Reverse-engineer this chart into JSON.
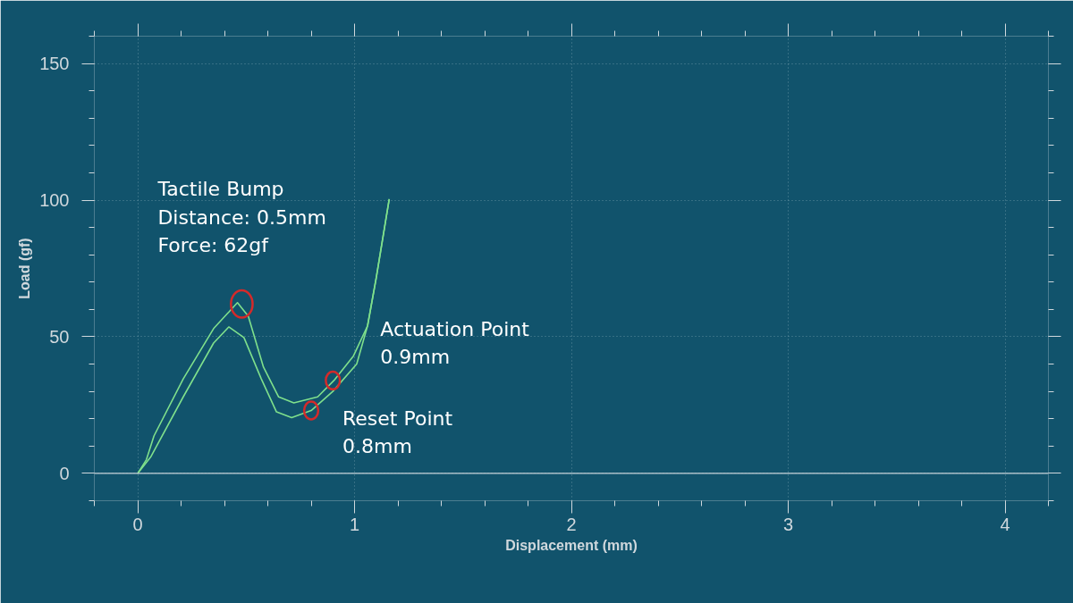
{
  "chart_data": {
    "type": "line",
    "xlabel": "Displacement (mm)",
    "ylabel": "Load (gf)",
    "xlim": [
      -0.2,
      4.2
    ],
    "ylim": [
      -10,
      160
    ],
    "xticks": [
      0,
      1,
      2,
      3,
      4
    ],
    "yticks": [
      0,
      50,
      100,
      150
    ],
    "grid": true,
    "line_style": "solid",
    "series": [
      {
        "color": "#7fe08c",
        "x": [
          0,
          0.04,
          0.075,
          0.21,
          0.35,
          0.46,
          0.51,
          0.58,
          0.65,
          0.72,
          0.83,
          0.905,
          0.995,
          1.06,
          1.1,
          1.16
        ],
        "values": [
          0,
          5,
          13.7,
          34.6,
          53,
          62.5,
          57.5,
          38.9,
          28,
          25.8,
          28,
          34,
          43,
          54,
          71.5,
          100.4
        ]
      },
      {
        "color": "#7fe08c",
        "x": [
          1.16,
          1.1,
          1.06,
          1.01,
          0.9,
          0.8,
          0.71,
          0.64,
          0.57,
          0.49,
          0.42,
          0.35,
          0.21,
          0.06,
          0
        ],
        "values": [
          100.4,
          71.5,
          54,
          40,
          30,
          23,
          20.4,
          22.5,
          34.6,
          49.7,
          53.6,
          47.7,
          28,
          6,
          0
        ]
      }
    ],
    "ref_lines": [
      {
        "axis": "y",
        "value": 0,
        "color": "#c8d3da"
      }
    ],
    "annotations": [
      {
        "text": "Tactile Bump\nDistance: 0.5mm\nForce: 62gf",
        "x": 0.48,
        "y": 62
      },
      {
        "text": "Actuation Point\n0.9mm",
        "x": 0.9,
        "y": 34
      },
      {
        "text": "Reset Point\n0.8mm",
        "x": 0.8,
        "y": 23
      }
    ]
  }
}
